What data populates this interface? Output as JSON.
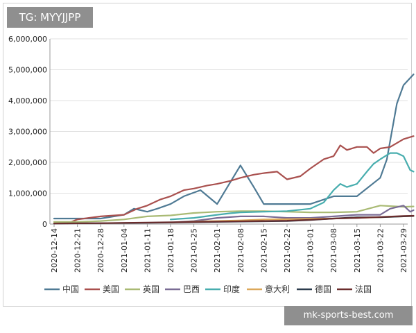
{
  "badge": {
    "text": "TG: MYYJJPP"
  },
  "watermark": {
    "text": "mk-sports-best.com"
  },
  "chart_data": {
    "type": "line",
    "title": "",
    "xlabel": "",
    "ylabel": "",
    "ylim": [
      0,
      6000000
    ],
    "yticks": [
      0,
      1000000,
      2000000,
      3000000,
      4000000,
      5000000,
      6000000
    ],
    "ytick_labels": [
      "0",
      "1,000,000",
      "2,000,000",
      "3,000,000",
      "4,000,000",
      "5,000,000",
      "6,000,000"
    ],
    "x_tick_labels": [
      "2020-12-14",
      "2020-12-21",
      "2020-12-28",
      "2021-01-04",
      "2021-01-11",
      "2021-01-18",
      "2021-01-25",
      "2021-02-01",
      "2021-02-08",
      "2021-02-15",
      "2021-02-22",
      "2021-03-01",
      "2021-03-08",
      "2021-03-15",
      "2021-03-22",
      "2021-03-29"
    ],
    "grid": "horizontal",
    "legend_position": "bottom",
    "series": [
      {
        "name": "中国",
        "color": "#4f7a94",
        "x": [
          "2020-12-14",
          "2020-12-21",
          "2020-12-28",
          "2021-01-04",
          "2021-01-07",
          "2021-01-11",
          "2021-01-14",
          "2021-01-18",
          "2021-01-22",
          "2021-01-27",
          "2021-02-01",
          "2021-02-08",
          "2021-02-12",
          "2021-02-15",
          "2021-02-22",
          "2021-03-01",
          "2021-03-08",
          "2021-03-15",
          "2021-03-22",
          "2021-03-24",
          "2021-03-27",
          "2021-03-29",
          "2021-04-01"
        ],
        "values": [
          180000,
          180000,
          180000,
          300000,
          500000,
          400000,
          500000,
          650000,
          900000,
          1100000,
          650000,
          1900000,
          1200000,
          650000,
          650000,
          650000,
          900000,
          900000,
          1500000,
          2100000,
          3900000,
          4500000,
          4850000
        ]
      },
      {
        "name": "美国",
        "color": "#a9504e",
        "x": [
          "2020-12-18",
          "2020-12-21",
          "2020-12-28",
          "2021-01-04",
          "2021-01-08",
          "2021-01-11",
          "2021-01-15",
          "2021-01-18",
          "2021-01-22",
          "2021-01-25",
          "2021-01-29",
          "2021-02-01",
          "2021-02-05",
          "2021-02-08",
          "2021-02-12",
          "2021-02-15",
          "2021-02-19",
          "2021-02-22",
          "2021-02-26",
          "2021-03-01",
          "2021-03-05",
          "2021-03-08",
          "2021-03-10",
          "2021-03-12",
          "2021-03-15",
          "2021-03-18",
          "2021-03-20",
          "2021-03-22",
          "2021-03-25",
          "2021-03-29",
          "2021-04-01"
        ],
        "values": [
          20000,
          150000,
          250000,
          300000,
          500000,
          600000,
          800000,
          900000,
          1100000,
          1150000,
          1250000,
          1300000,
          1400000,
          1500000,
          1600000,
          1650000,
          1700000,
          1450000,
          1550000,
          1800000,
          2100000,
          2200000,
          2550000,
          2400000,
          2500000,
          2500000,
          2300000,
          2450000,
          2500000,
          2750000,
          2850000
        ]
      },
      {
        "name": "英国",
        "color": "#a9ba74",
        "x": [
          "2020-12-14",
          "2020-12-21",
          "2020-12-28",
          "2021-01-04",
          "2021-01-11",
          "2021-01-18",
          "2021-01-25",
          "2021-02-01",
          "2021-02-08",
          "2021-02-15",
          "2021-02-22",
          "2021-03-01",
          "2021-03-08",
          "2021-03-15",
          "2021-03-22",
          "2021-03-29",
          "2021-04-01"
        ],
        "values": [
          70000,
          70000,
          100000,
          150000,
          250000,
          280000,
          360000,
          400000,
          420000,
          420000,
          400000,
          380000,
          380000,
          400000,
          600000,
          560000,
          570000
        ]
      },
      {
        "name": "巴西",
        "color": "#7a6c95",
        "x": [
          "2021-01-18",
          "2021-01-25",
          "2021-02-01",
          "2021-02-08",
          "2021-02-15",
          "2021-02-22",
          "2021-03-01",
          "2021-03-08",
          "2021-03-15",
          "2021-03-22",
          "2021-03-25",
          "2021-03-29",
          "2021-03-31",
          "2021-04-01"
        ],
        "values": [
          50000,
          100000,
          200000,
          250000,
          250000,
          200000,
          200000,
          250000,
          300000,
          300000,
          500000,
          600000,
          400000,
          450000
        ]
      },
      {
        "name": "印度",
        "color": "#47adae",
        "x": [
          "2021-01-18",
          "2021-01-25",
          "2021-02-01",
          "2021-02-05",
          "2021-02-08",
          "2021-02-15",
          "2021-02-22",
          "2021-03-01",
          "2021-03-05",
          "2021-03-08",
          "2021-03-10",
          "2021-03-12",
          "2021-03-15",
          "2021-03-18",
          "2021-03-20",
          "2021-03-22",
          "2021-03-25",
          "2021-03-27",
          "2021-03-29",
          "2021-03-31",
          "2021-04-01"
        ],
        "values": [
          150000,
          200000,
          300000,
          350000,
          380000,
          400000,
          420000,
          500000,
          700000,
          1100000,
          1300000,
          1200000,
          1300000,
          1700000,
          1950000,
          2100000,
          2300000,
          2300000,
          2200000,
          1750000,
          1700000
        ]
      },
      {
        "name": "意大利",
        "color": "#dca85a",
        "x": [
          "2021-01-18",
          "2021-01-25",
          "2021-02-01",
          "2021-02-08",
          "2021-02-15",
          "2021-02-22",
          "2021-03-01",
          "2021-03-08",
          "2021-03-15",
          "2021-03-22",
          "2021-03-29",
          "2021-04-01"
        ],
        "values": [
          50000,
          80000,
          100000,
          120000,
          150000,
          160000,
          170000,
          180000,
          200000,
          220000,
          250000,
          260000
        ]
      },
      {
        "name": "德国",
        "color": "#2c3c4d",
        "x": [
          "2020-12-14",
          "2020-12-28",
          "2021-01-11",
          "2021-01-25",
          "2021-02-08",
          "2021-02-22",
          "2021-03-01",
          "2021-03-08",
          "2021-03-15",
          "2021-03-22",
          "2021-03-29",
          "2021-04-01"
        ],
        "values": [
          20000,
          30000,
          40000,
          60000,
          80000,
          100000,
          130000,
          180000,
          220000,
          220000,
          250000,
          260000
        ]
      },
      {
        "name": "法国",
        "color": "#6b2d2d",
        "x": [
          "2020-12-14",
          "2020-12-28",
          "2021-01-11",
          "2021-01-25",
          "2021-02-08",
          "2021-02-22",
          "2021-03-01",
          "2021-03-08",
          "2021-03-15",
          "2021-03-22",
          "2021-03-29",
          "2021-04-01"
        ],
        "values": [
          20000,
          30000,
          50000,
          70000,
          90000,
          110000,
          140000,
          180000,
          200000,
          230000,
          260000,
          270000
        ]
      }
    ]
  }
}
